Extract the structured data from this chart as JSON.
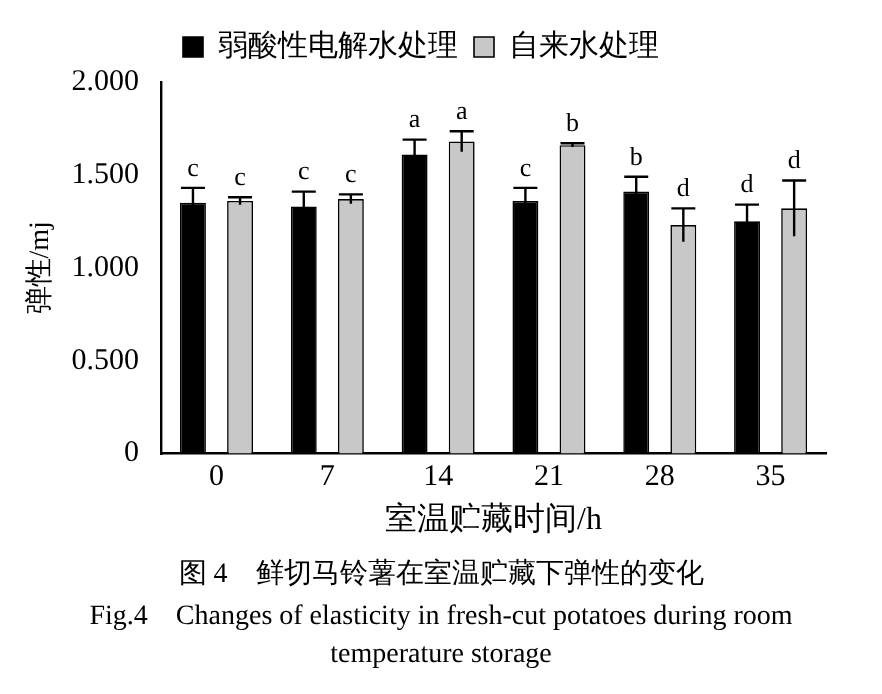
{
  "chart_data": {
    "type": "bar",
    "xlabel": "室温贮藏时间/h",
    "ylabel": "弹性/mj",
    "categories": [
      "0",
      "7",
      "14",
      "21",
      "28",
      "35"
    ],
    "series": [
      {
        "name": "弱酸性电解水处理",
        "color": "#000000",
        "values": [
          1.35,
          1.33,
          1.61,
          1.36,
          1.41,
          1.25
        ],
        "errors": [
          0.08,
          0.08,
          0.08,
          0.07,
          0.08,
          0.09
        ],
        "value_labels": [
          "c",
          "c",
          "a",
          "c",
          "b",
          "d"
        ]
      },
      {
        "name": "自来水处理",
        "color": "#c8c8c8",
        "values": [
          1.36,
          1.37,
          1.68,
          1.66,
          1.23,
          1.32
        ],
        "errors": [
          0.02,
          0.025,
          0.055,
          0.01,
          0.09,
          0.15
        ],
        "value_labels": [
          "c",
          "c",
          "a",
          "b",
          "d",
          "d"
        ]
      }
    ],
    "ylim": [
      0,
      2
    ],
    "yticks": [
      0,
      {
        "value": 0.5,
        "label": "0.500"
      },
      {
        "value": 1,
        "label": "1.000"
      },
      {
        "value": 1.5,
        "label": "1.500"
      },
      {
        "value": 2,
        "label": "2.000"
      }
    ],
    "grid": false,
    "legend": "top",
    "annotations": [
      "图 4　鲜切马铃薯在室温贮藏下弹性的变化",
      "Fig.4　Changes of elasticity in fresh-cut potatoes during room temperature storage"
    ]
  }
}
